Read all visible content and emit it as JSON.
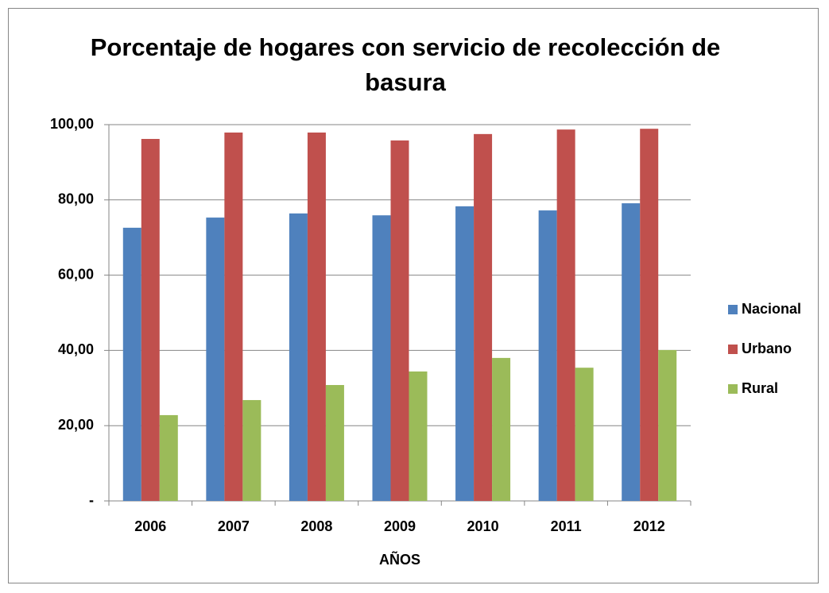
{
  "chart_data": {
    "type": "bar",
    "title": "Porcentaje de hogares con servicio de recolección de basura",
    "x_label": "AÑOS",
    "categories": [
      "2006",
      "2007",
      "2008",
      "2009",
      "2010",
      "2011",
      "2012"
    ],
    "series": [
      {
        "name": "Nacional",
        "color": "#4f81bd",
        "values": [
          72.6,
          75.3,
          76.4,
          75.9,
          78.3,
          77.2,
          79.1
        ]
      },
      {
        "name": "Urbano",
        "color": "#c0504d",
        "values": [
          96.2,
          97.9,
          97.9,
          95.8,
          97.5,
          98.7,
          98.9
        ]
      },
      {
        "name": "Rural",
        "color": "#9bbb59",
        "values": [
          22.8,
          26.8,
          30.8,
          34.4,
          38.0,
          35.4,
          40.1
        ]
      }
    ],
    "ylim": [
      0,
      100
    ],
    "yticks": [
      {
        "value": 0,
        "label": "-"
      },
      {
        "value": 20,
        "label": "20,00"
      },
      {
        "value": 40,
        "label": "40,00"
      },
      {
        "value": 60,
        "label": "60,00"
      },
      {
        "value": 80,
        "label": "80,00"
      },
      {
        "value": 100,
        "label": "100,00"
      }
    ],
    "grid": true,
    "legend": "right"
  }
}
